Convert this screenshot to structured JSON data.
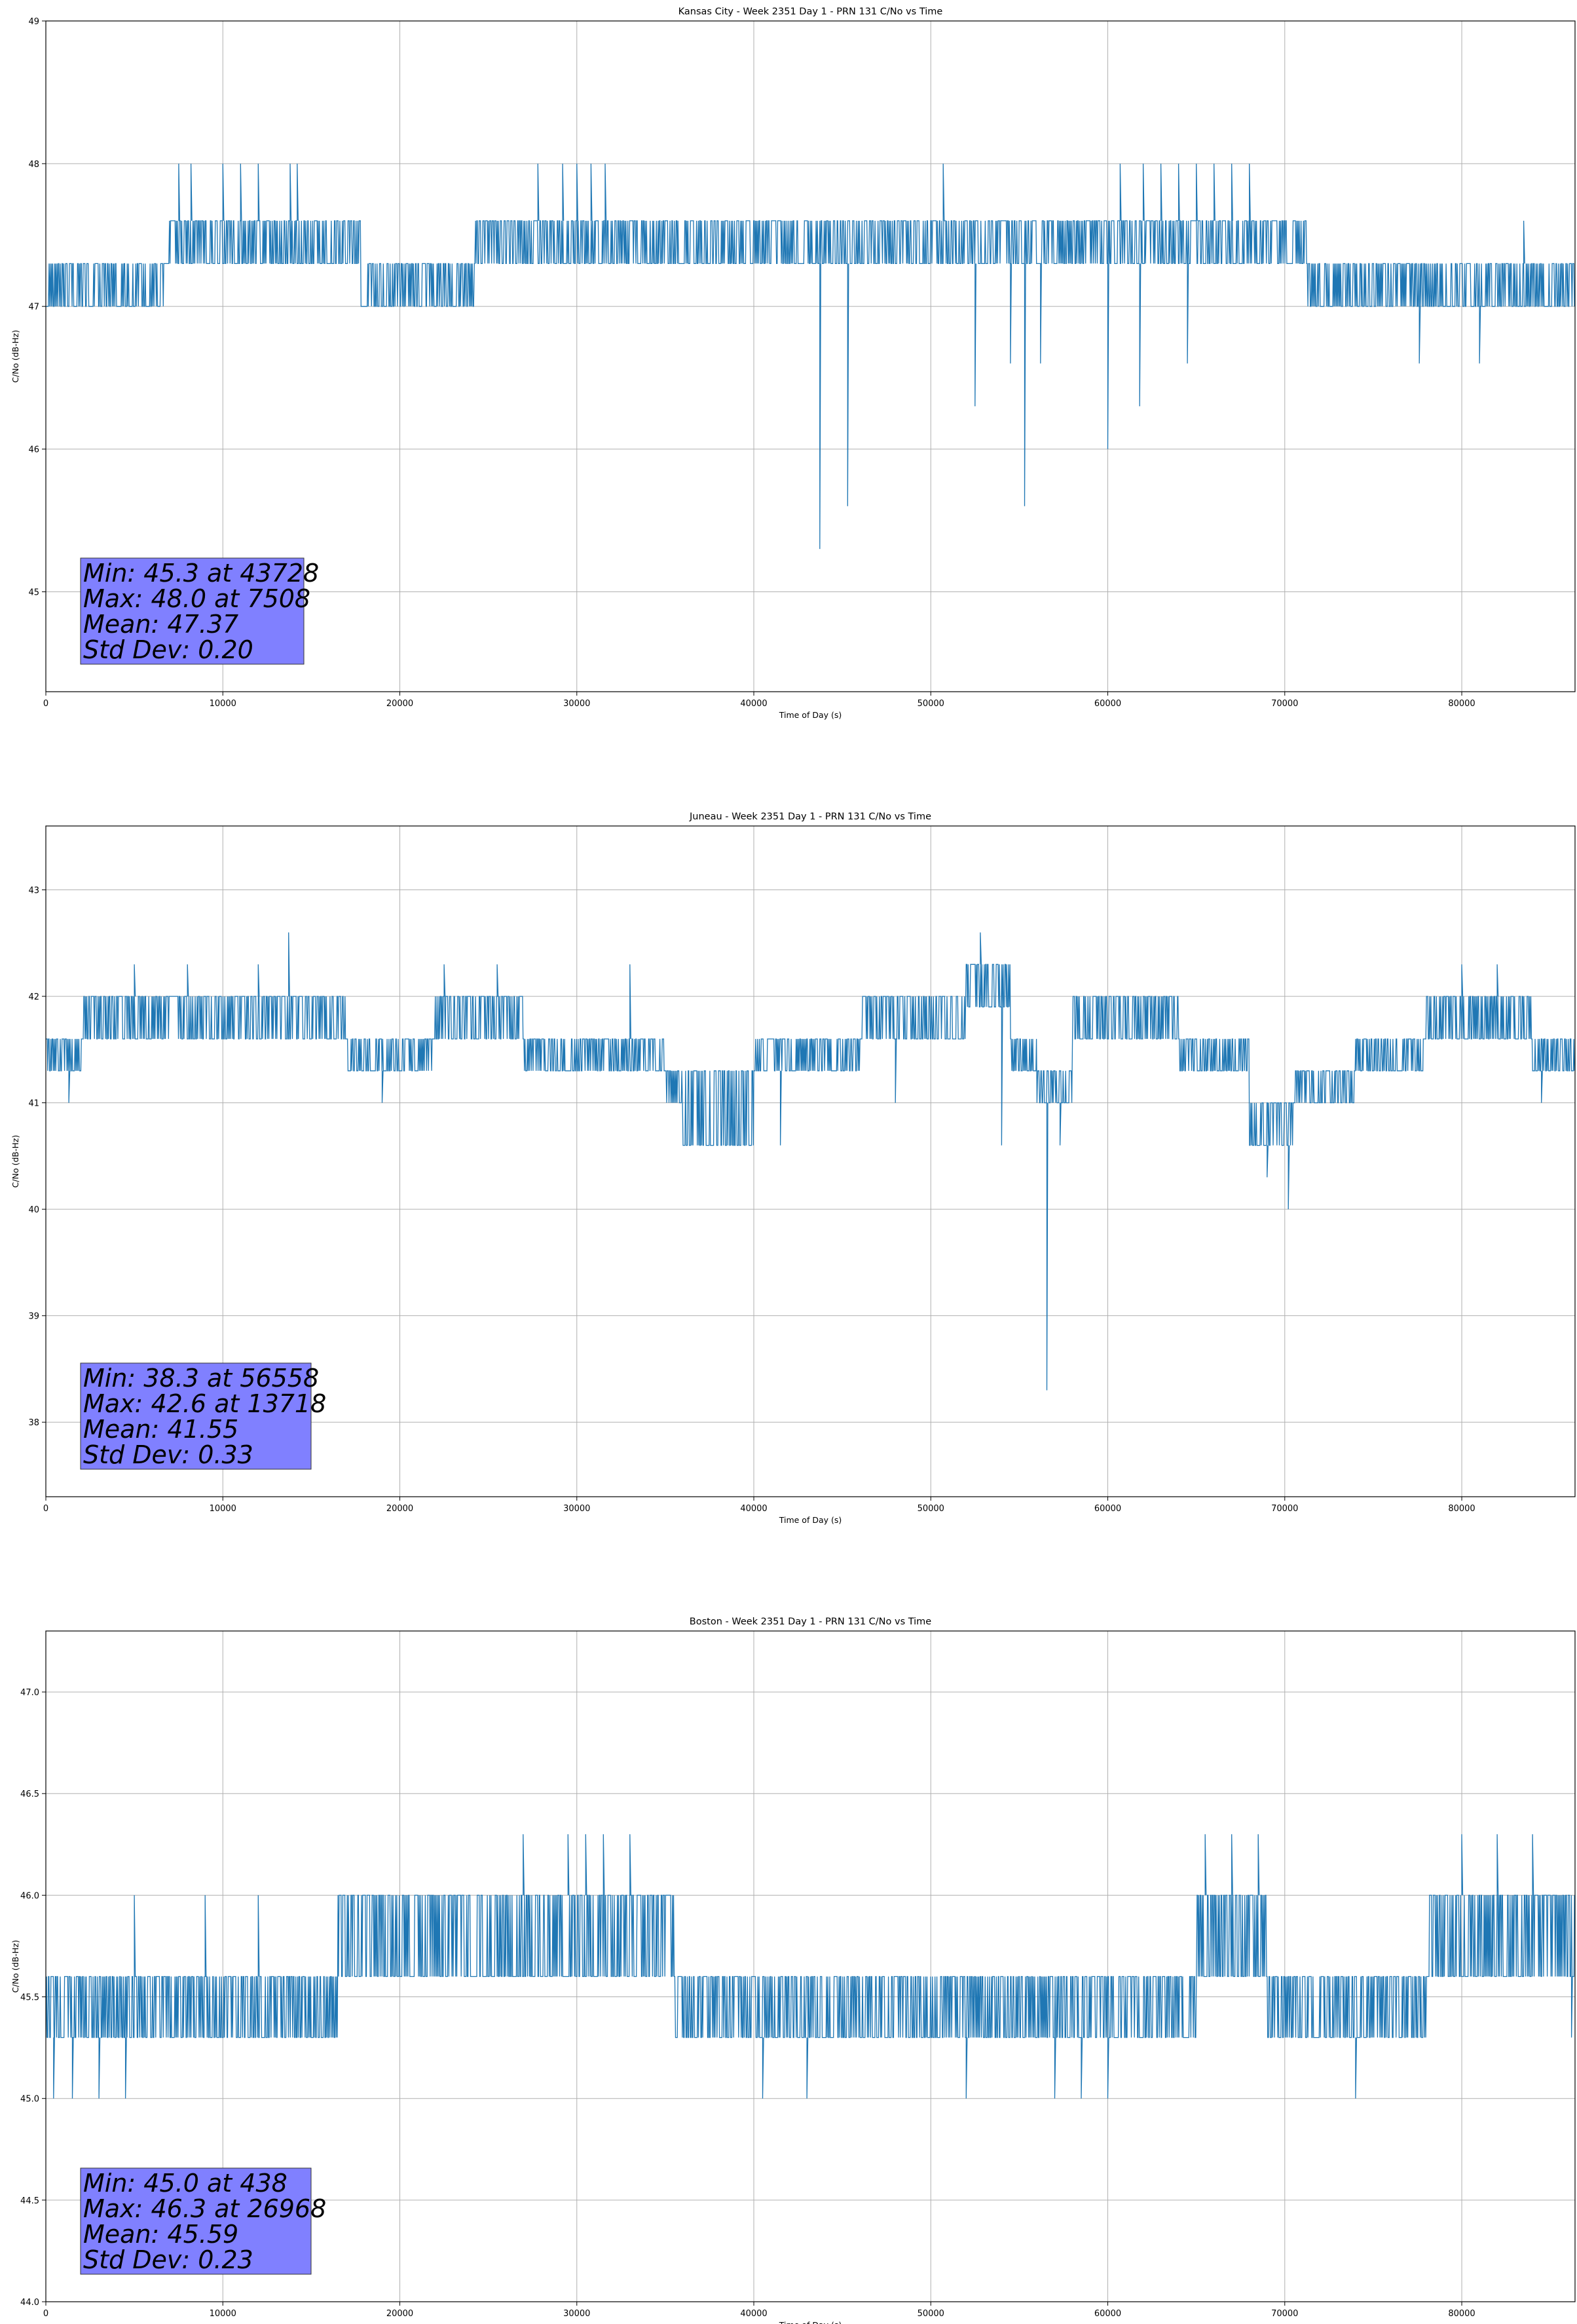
{
  "chart_data": [
    {
      "type": "line",
      "title": "Kansas City - Week 2351 Day 1 - PRN 131 C/No vs Time",
      "xlabel": "Time of Day (s)",
      "ylabel": "C/No (dB-Hz)",
      "xlim": [
        0,
        86400
      ],
      "ylim": [
        44.3,
        49
      ],
      "xticks": [
        0,
        10000,
        20000,
        30000,
        40000,
        50000,
        60000,
        70000,
        80000
      ],
      "yticks": [
        45,
        46,
        47,
        48,
        49
      ],
      "grid": true,
      "color": "#1f77b4",
      "series": [
        {
          "name": "C/No",
          "bands": [
            {
              "x": [
                0,
                6800
              ],
              "v": [
                47.0,
                47.3
              ]
            },
            {
              "x": [
                6800,
                17800
              ],
              "v": [
                47.3,
                47.6
              ]
            },
            {
              "x": [
                17800,
                24200
              ],
              "v": [
                47.0,
                47.3
              ]
            },
            {
              "x": [
                24200,
                71300
              ],
              "v": [
                47.3,
                47.6
              ]
            },
            {
              "x": [
                71300,
                86400
              ],
              "v": [
                47.0,
                47.3
              ]
            }
          ],
          "spikes": [
            {
              "x": 7508,
              "y": 48.0
            },
            {
              "x": 8200,
              "y": 48.0
            },
            {
              "x": 10000,
              "y": 48.0
            },
            {
              "x": 11000,
              "y": 48.0
            },
            {
              "x": 12000,
              "y": 48.0
            },
            {
              "x": 13800,
              "y": 48.0
            },
            {
              "x": 14200,
              "y": 48.0
            },
            {
              "x": 27800,
              "y": 48.0
            },
            {
              "x": 29200,
              "y": 48.0
            },
            {
              "x": 30000,
              "y": 48.0
            },
            {
              "x": 30800,
              "y": 48.0
            },
            {
              "x": 31600,
              "y": 48.0
            },
            {
              "x": 43728,
              "y": 45.3
            },
            {
              "x": 45300,
              "y": 45.6
            },
            {
              "x": 50700,
              "y": 48.0
            },
            {
              "x": 52500,
              "y": 46.3
            },
            {
              "x": 54500,
              "y": 46.6
            },
            {
              "x": 55300,
              "y": 45.6
            },
            {
              "x": 56200,
              "y": 46.6
            },
            {
              "x": 60000,
              "y": 46.0
            },
            {
              "x": 60700,
              "y": 48.0
            },
            {
              "x": 61800,
              "y": 46.3
            },
            {
              "x": 62000,
              "y": 48.0
            },
            {
              "x": 63000,
              "y": 48.0
            },
            {
              "x": 64000,
              "y": 48.0
            },
            {
              "x": 64500,
              "y": 46.6
            },
            {
              "x": 65000,
              "y": 48.0
            },
            {
              "x": 66000,
              "y": 48.0
            },
            {
              "x": 67000,
              "y": 48.0
            },
            {
              "x": 68000,
              "y": 48.0
            },
            {
              "x": 77600,
              "y": 46.6
            },
            {
              "x": 81000,
              "y": 46.6
            },
            {
              "x": 83500,
              "y": 47.6
            }
          ]
        }
      ],
      "stats": [
        "Min: 45.3 at 43728",
        "Max: 48.0 at 7508",
        "Mean: 47.37",
        "Std Dev: 0.20"
      ]
    },
    {
      "type": "line",
      "title": "Juneau - Week 2351 Day 1 - PRN 131 C/No vs Time",
      "xlabel": "Time of Day (s)",
      "ylabel": "C/No (dB-Hz)",
      "xlim": [
        0,
        86400
      ],
      "ylim": [
        37.3,
        43.6
      ],
      "xticks": [
        0,
        10000,
        20000,
        30000,
        40000,
        50000,
        60000,
        70000,
        80000
      ],
      "yticks": [
        38,
        39,
        40,
        41,
        42,
        43
      ],
      "grid": true,
      "color": "#1f77b4",
      "series": [
        {
          "name": "C/No",
          "bands": [
            {
              "x": [
                0,
                2000
              ],
              "v": [
                41.3,
                41.6
              ]
            },
            {
              "x": [
                2000,
                17000
              ],
              "v": [
                41.6,
                42.0
              ]
            },
            {
              "x": [
                17000,
                22000
              ],
              "v": [
                41.3,
                41.6
              ]
            },
            {
              "x": [
                22000,
                27000
              ],
              "v": [
                41.6,
                42.0
              ]
            },
            {
              "x": [
                27000,
                35000
              ],
              "v": [
                41.3,
                41.6
              ]
            },
            {
              "x": [
                35000,
                36000
              ],
              "v": [
                41.0,
                41.3
              ]
            },
            {
              "x": [
                36000,
                40000
              ],
              "v": [
                40.6,
                41.3
              ]
            },
            {
              "x": [
                40000,
                46000
              ],
              "v": [
                41.3,
                41.6
              ]
            },
            {
              "x": [
                46000,
                52000
              ],
              "v": [
                41.6,
                42.0
              ]
            },
            {
              "x": [
                52000,
                54500
              ],
              "v": [
                41.9,
                42.3
              ]
            },
            {
              "x": [
                54500,
                56000
              ],
              "v": [
                41.3,
                41.6
              ]
            },
            {
              "x": [
                56000,
                58000
              ],
              "v": [
                41.0,
                41.3
              ]
            },
            {
              "x": [
                58000,
                64000
              ],
              "v": [
                41.6,
                42.0
              ]
            },
            {
              "x": [
                64000,
                68000
              ],
              "v": [
                41.3,
                41.6
              ]
            },
            {
              "x": [
                68000,
                70500
              ],
              "v": [
                40.6,
                41.0
              ]
            },
            {
              "x": [
                70500,
                74000
              ],
              "v": [
                41.0,
                41.3
              ]
            },
            {
              "x": [
                74000,
                78000
              ],
              "v": [
                41.3,
                41.6
              ]
            },
            {
              "x": [
                78000,
                84000
              ],
              "v": [
                41.6,
                42.0
              ]
            },
            {
              "x": [
                84000,
                86400
              ],
              "v": [
                41.3,
                41.6
              ]
            }
          ],
          "spikes": [
            {
              "x": 1300,
              "y": 41.0
            },
            {
              "x": 5000,
              "y": 42.3
            },
            {
              "x": 8000,
              "y": 42.3
            },
            {
              "x": 12000,
              "y": 42.3
            },
            {
              "x": 13718,
              "y": 42.6
            },
            {
              "x": 19000,
              "y": 41.0
            },
            {
              "x": 22500,
              "y": 42.3
            },
            {
              "x": 25500,
              "y": 42.3
            },
            {
              "x": 33000,
              "y": 42.3
            },
            {
              "x": 41500,
              "y": 40.6
            },
            {
              "x": 48000,
              "y": 41.0
            },
            {
              "x": 52800,
              "y": 42.6
            },
            {
              "x": 54000,
              "y": 40.6
            },
            {
              "x": 56558,
              "y": 38.3
            },
            {
              "x": 57300,
              "y": 40.6
            },
            {
              "x": 69000,
              "y": 40.3
            },
            {
              "x": 70200,
              "y": 40.0
            },
            {
              "x": 80000,
              "y": 42.3
            },
            {
              "x": 82000,
              "y": 42.3
            },
            {
              "x": 84500,
              "y": 41.0
            }
          ]
        }
      ],
      "stats": [
        "Min: 38.3 at 56558",
        "Max: 42.6 at 13718",
        "Mean: 41.55",
        "Std Dev: 0.33"
      ]
    },
    {
      "type": "line",
      "title": "Boston - Week 2351 Day 1 - PRN 131 C/No vs Time",
      "xlabel": "Time of Day (s)",
      "ylabel": "C/No (dB-Hz)",
      "xlim": [
        0,
        86400
      ],
      "ylim": [
        44.0,
        47.3
      ],
      "xticks": [
        0,
        10000,
        20000,
        30000,
        40000,
        50000,
        60000,
        70000,
        80000
      ],
      "yticks": [
        44.0,
        44.5,
        45.0,
        45.5,
        46.0,
        46.5,
        47.0
      ],
      "grid": true,
      "color": "#1f77b4",
      "series": [
        {
          "name": "C/No",
          "bands": [
            {
              "x": [
                0,
                16500
              ],
              "v": [
                45.3,
                45.6
              ]
            },
            {
              "x": [
                16500,
                35500
              ],
              "v": [
                45.6,
                46.0
              ]
            },
            {
              "x": [
                35500,
                65000
              ],
              "v": [
                45.3,
                45.6
              ]
            },
            {
              "x": [
                65000,
                69000
              ],
              "v": [
                45.6,
                46.0
              ]
            },
            {
              "x": [
                69000,
                78000
              ],
              "v": [
                45.3,
                45.6
              ]
            },
            {
              "x": [
                78000,
                86400
              ],
              "v": [
                45.6,
                46.0
              ]
            }
          ],
          "spikes": [
            {
              "x": 438,
              "y": 45.0
            },
            {
              "x": 1500,
              "y": 45.0
            },
            {
              "x": 3000,
              "y": 45.0
            },
            {
              "x": 4500,
              "y": 45.0
            },
            {
              "x": 5000,
              "y": 46.0
            },
            {
              "x": 9000,
              "y": 46.0
            },
            {
              "x": 12000,
              "y": 46.0
            },
            {
              "x": 26968,
              "y": 46.3
            },
            {
              "x": 29500,
              "y": 46.3
            },
            {
              "x": 30500,
              "y": 46.3
            },
            {
              "x": 31500,
              "y": 46.3
            },
            {
              "x": 33000,
              "y": 46.3
            },
            {
              "x": 40500,
              "y": 45.0
            },
            {
              "x": 43000,
              "y": 45.0
            },
            {
              "x": 52000,
              "y": 45.0
            },
            {
              "x": 57000,
              "y": 45.0
            },
            {
              "x": 58500,
              "y": 45.0
            },
            {
              "x": 60000,
              "y": 45.0
            },
            {
              "x": 65500,
              "y": 46.3
            },
            {
              "x": 67000,
              "y": 46.3
            },
            {
              "x": 68500,
              "y": 46.3
            },
            {
              "x": 74000,
              "y": 45.0
            },
            {
              "x": 80000,
              "y": 46.3
            },
            {
              "x": 82000,
              "y": 46.3
            },
            {
              "x": 84000,
              "y": 46.3
            },
            {
              "x": 86200,
              "y": 45.3
            }
          ]
        }
      ],
      "stats": [
        "Min: 45.0 at 438",
        "Max: 46.3 at 26968",
        "Mean: 45.59",
        "Std Dev: 0.23"
      ]
    }
  ]
}
